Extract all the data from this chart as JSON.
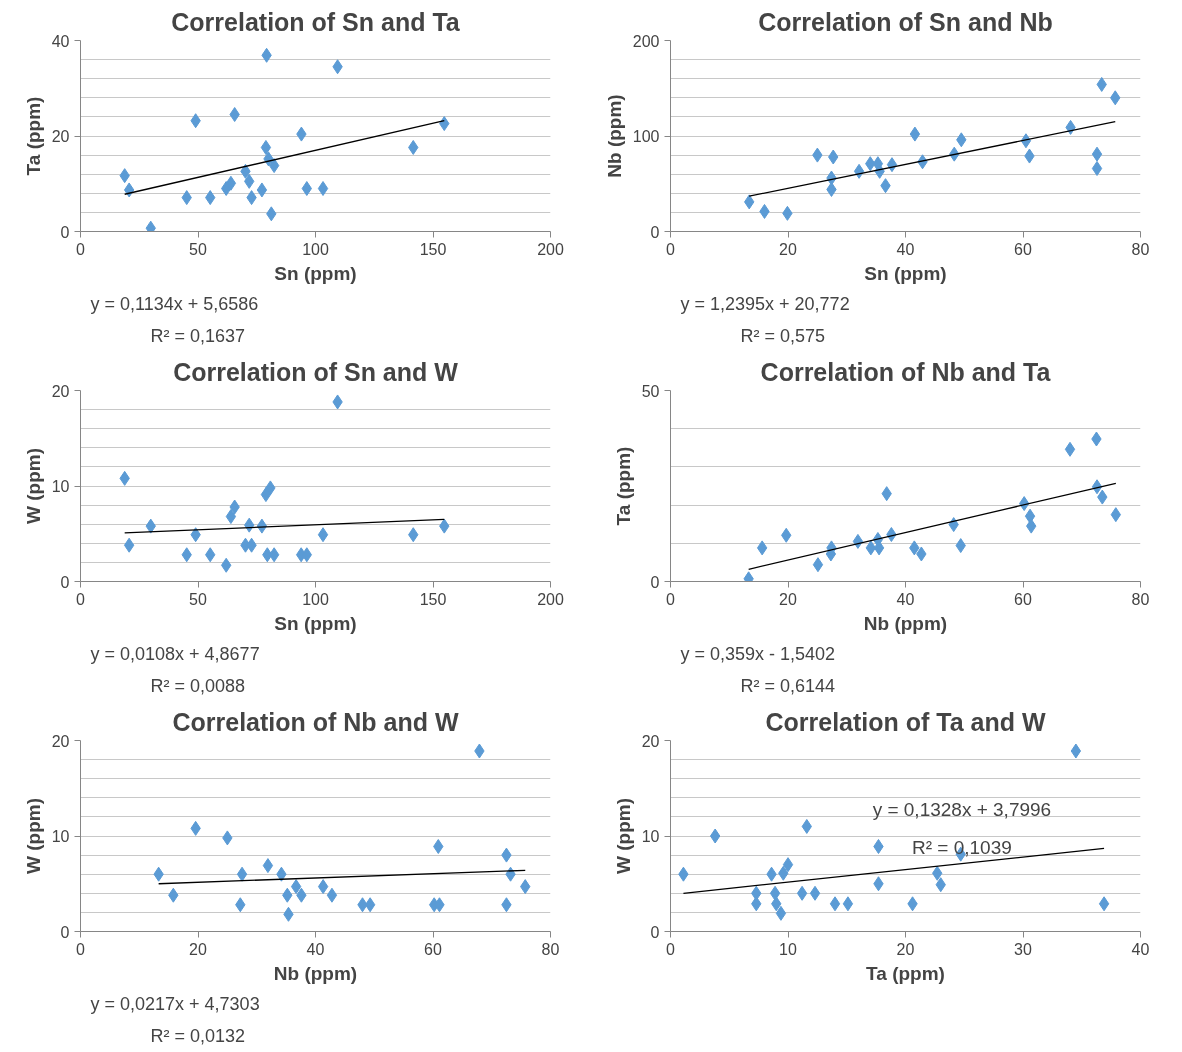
{
  "chart_data": [
    {
      "type": "scatter",
      "title": "Correlation of Sn and Ta",
      "xlabel": "Sn (ppm)",
      "ylabel": "Ta (ppm)",
      "xlim": [
        0,
        200
      ],
      "ylim": [
        0,
        40
      ],
      "xticks": [
        0,
        50,
        100,
        150,
        200
      ],
      "yticks": [
        0,
        20,
        40
      ],
      "grid": "y",
      "annotations": [
        "y = 0,1134x + 5,6586",
        "R² = 0,1637"
      ],
      "series": [
        {
          "marker": "diamond",
          "color": "#5b9bd5",
          "x": [
            18.8,
            20.7,
            29.9,
            45.2,
            49,
            55.2,
            62,
            64,
            65.6,
            70.2,
            71.8,
            72.8,
            77.2,
            78.9,
            79.2,
            80,
            81.2,
            82.4,
            94,
            96.3,
            103.2,
            109.4,
            141.6,
            154.8
          ],
          "values": [
            11.7,
            8.7,
            0.7,
            7.1,
            23.2,
            7.1,
            9,
            10.1,
            24.5,
            12.6,
            10.5,
            7.1,
            8.7,
            17.6,
            36.9,
            15.2,
            3.7,
            13.8,
            20.4,
            9,
            9,
            34.5,
            17.6,
            22.6
          ]
        },
        {
          "type": "line",
          "marker": "none",
          "color": "#000000",
          "x": [
            18.8,
            154.8
          ],
          "values": [
            7.8,
            23.2
          ]
        }
      ]
    },
    {
      "type": "scatter",
      "title": "Correlation of Sn and Nb",
      "xlabel": "Sn (ppm)",
      "ylabel": "Nb (ppm)",
      "xlim": [
        0,
        80
      ],
      "ylim": [
        0,
        200
      ],
      "xticks": [
        0,
        20,
        40,
        60,
        80
      ],
      "yticks": [
        0,
        100,
        200
      ],
      "grid": "y",
      "annotations": [
        "y = 1,2395x + 20,772",
        "R² = 0,575"
      ],
      "series": [
        {
          "marker": "diamond",
          "color": "#5b9bd5",
          "x": [
            13.4,
            16,
            19.9,
            25,
            27.7,
            27.4,
            27.4,
            32.1,
            34,
            35.3,
            35.6,
            36.6,
            37.7,
            41.6,
            42.9,
            48.3,
            49.5,
            60.5,
            61.1,
            68.1,
            72.6,
            72.6,
            73.4,
            75.7
          ],
          "values": [
            31,
            21,
            19,
            80,
            78,
            56,
            44,
            63,
            71,
            71,
            63,
            48,
            70,
            102,
            73,
            81,
            96,
            95,
            79,
            109,
            81,
            66,
            154,
            140
          ]
        },
        {
          "type": "line",
          "marker": "none",
          "color": "#000000",
          "x": [
            13.4,
            75.7
          ],
          "values": [
            37,
            115
          ]
        }
      ]
    },
    {
      "type": "scatter",
      "title": "Correlation of Sn and W",
      "xlabel": "Sn (ppm)",
      "ylabel": "W (ppm)",
      "xlim": [
        0,
        200
      ],
      "ylim": [
        0,
        20
      ],
      "xticks": [
        0,
        50,
        100,
        150,
        200
      ],
      "yticks": [
        0,
        10,
        20
      ],
      "grid": "y",
      "annotations": [
        "y = 0,0108x + 4,8677",
        "R² = 0,0088"
      ],
      "series": [
        {
          "marker": "diamond",
          "color": "#5b9bd5",
          "x": [
            18.8,
            20.7,
            29.9,
            45.2,
            49,
            55.2,
            62,
            64,
            65.6,
            70.2,
            71.8,
            72.8,
            77.2,
            78.9,
            80.8,
            79.5,
            82.4,
            93.9,
            96.3,
            103.2,
            109.4,
            141.6,
            154.8
          ],
          "values": [
            10.8,
            3.8,
            5.8,
            2.8,
            4.9,
            2.8,
            1.7,
            6.8,
            7.8,
            3.8,
            5.9,
            3.8,
            5.8,
            9.1,
            9.8,
            2.8,
            2.8,
            2.8,
            2.8,
            4.9,
            18.8,
            4.9,
            5.8
          ]
        },
        {
          "type": "line",
          "marker": "none",
          "color": "#000000",
          "x": [
            18.8,
            154.8
          ],
          "values": [
            5.1,
            6.5
          ]
        }
      ]
    },
    {
      "type": "scatter",
      "title": "Correlation of Nb and Ta",
      "xlabel": "Nb (ppm)",
      "ylabel": "Ta (ppm)",
      "xlim": [
        0,
        80
      ],
      "ylim": [
        0,
        50
      ],
      "xticks": [
        0,
        20,
        40,
        60,
        80
      ],
      "yticks": [
        0,
        50
      ],
      "grid": "y",
      "annotations": [
        "y = 0,359x - 1,5402",
        "R² = 0,6144"
      ],
      "series": [
        {
          "marker": "diamond",
          "color": "#5b9bd5",
          "x": [
            13.3,
            15.6,
            19.7,
            25.1,
            27.3,
            27.4,
            31.9,
            34.1,
            35.3,
            35.5,
            36.8,
            37.6,
            41.5,
            42.7,
            48.2,
            49.4,
            60.2,
            61.2,
            61.4,
            68,
            72.5,
            72.6,
            73.5,
            75.8
          ],
          "values": [
            0.7,
            8.8,
            12.1,
            4.4,
            7.2,
            8.8,
            10.5,
            8.8,
            11,
            8.8,
            23,
            12.3,
            8.8,
            7.2,
            14.9,
            9.4,
            20.4,
            17.1,
            14.5,
            34.6,
            37.3,
            24.8,
            22.1,
            17.5
          ]
        },
        {
          "type": "line",
          "marker": "none",
          "color": "#000000",
          "x": [
            13.3,
            75.8
          ],
          "values": [
            3.2,
            25.7
          ]
        }
      ]
    },
    {
      "type": "scatter",
      "title": "Correlation of Nb and W",
      "xlabel": "Nb (ppm)",
      "ylabel": "W (ppm)",
      "xlim": [
        0,
        80
      ],
      "ylim": [
        0,
        20
      ],
      "xticks": [
        0,
        20,
        40,
        60,
        80
      ],
      "yticks": [
        0,
        10,
        20
      ],
      "grid": "y",
      "annotations": [
        "y = 0,0217x + 4,7303",
        "R² = 0,0132"
      ],
      "series": [
        {
          "marker": "diamond",
          "color": "#5b9bd5",
          "x": [
            13.3,
            15.8,
            19.6,
            25,
            27.5,
            27.2,
            31.9,
            34.2,
            35.4,
            35.2,
            36.7,
            37.6,
            41.3,
            42.8,
            48,
            49.3,
            60.2,
            61.1,
            60.9,
            67.9,
            72.5,
            73.2,
            72.5,
            75.7
          ],
          "values": [
            6,
            3.8,
            10.8,
            9.8,
            6,
            2.8,
            6.9,
            6,
            1.8,
            3.8,
            4.7,
            3.8,
            4.7,
            3.8,
            2.8,
            2.8,
            2.8,
            2.8,
            8.9,
            18.9,
            8,
            6,
            2.8,
            4.7
          ]
        },
        {
          "type": "line",
          "marker": "none",
          "color": "#000000",
          "x": [
            13.3,
            75.7
          ],
          "values": [
            5,
            6.4
          ]
        }
      ]
    },
    {
      "type": "scatter",
      "title": "Correlation of Ta and W",
      "xlabel": "Ta (ppm)",
      "ylabel": "W (ppm)",
      "xlim": [
        0,
        40
      ],
      "ylim": [
        0,
        20
      ],
      "xticks": [
        0,
        10,
        20,
        30,
        40
      ],
      "yticks": [
        0,
        10,
        20
      ],
      "grid": "y",
      "annotations": [
        "y = 0,1328x + 3,7996",
        "R² = 0,1039"
      ],
      "series": [
        {
          "marker": "diamond",
          "color": "#5b9bd5",
          "x": [
            1.1,
            3.8,
            7.3,
            7.3,
            8.6,
            8.9,
            9,
            9.4,
            9.6,
            10,
            11.2,
            11.6,
            12.3,
            14,
            15.1,
            17.7,
            17.7,
            20.6,
            22.7,
            23,
            24.7,
            34.5,
            36.9
          ],
          "values": [
            6,
            10,
            4,
            2.9,
            6,
            4,
            2.9,
            1.9,
            6.1,
            7,
            4,
            11,
            4,
            2.9,
            2.9,
            5,
            8.9,
            2.9,
            6.1,
            4.9,
            8.1,
            18.9,
            2.9
          ]
        },
        {
          "type": "line",
          "marker": "none",
          "color": "#000000",
          "x": [
            1.1,
            36.9
          ],
          "values": [
            4,
            8.7
          ]
        }
      ]
    }
  ]
}
